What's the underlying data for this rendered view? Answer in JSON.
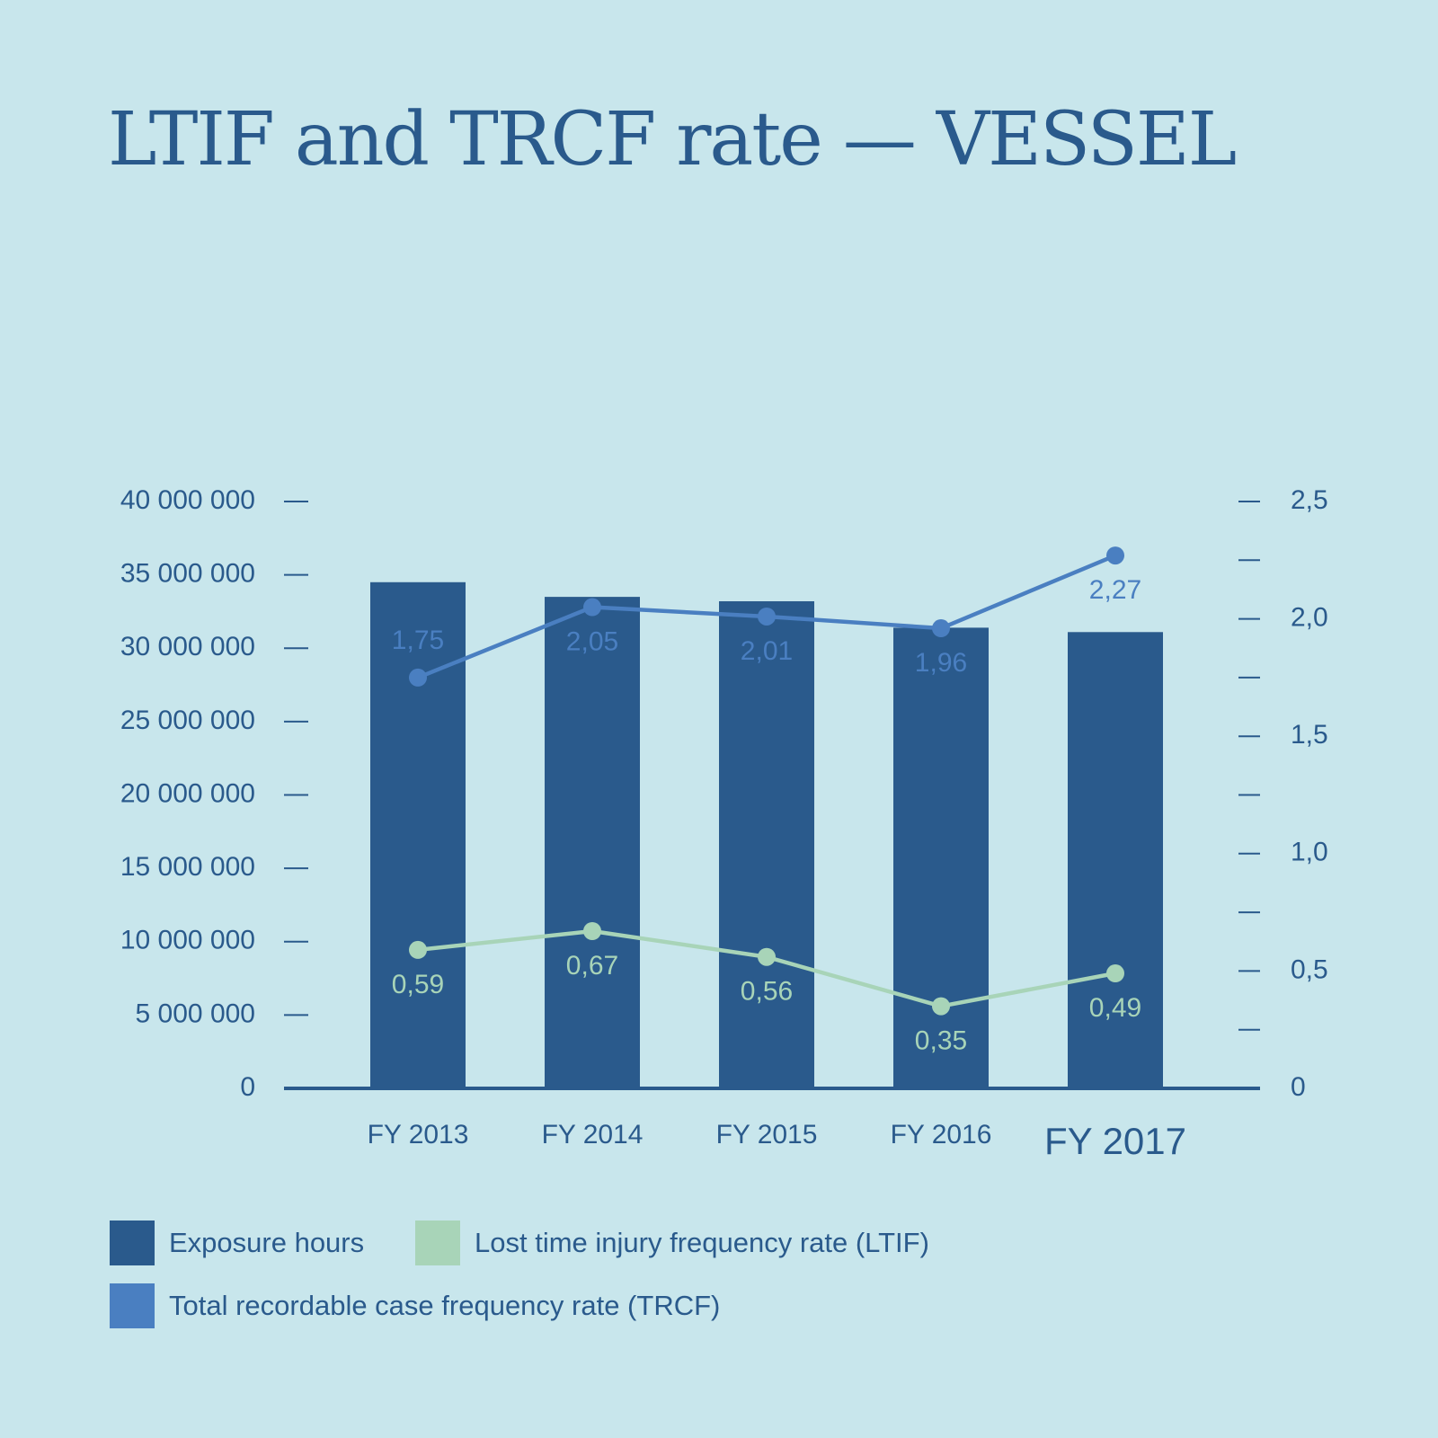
{
  "chart_data": {
    "type": "bar",
    "title": "LTIF and TRCF rate — VESSEL",
    "categories": [
      "FY 2013",
      "FY 2014",
      "FY 2015",
      "FY 2016",
      "FY 2017"
    ],
    "highlight_category": "FY 2017",
    "y_left": {
      "min": 0,
      "max": 40000000,
      "step": 5000000,
      "tick_labels": [
        "0",
        "5 000 000",
        "10 000 000",
        "15 000 000",
        "20 000 000",
        "25 000 000",
        "30 000 000",
        "35 000 000",
        "40 000 000"
      ]
    },
    "y_right": {
      "min": 0,
      "max": 2.5,
      "step": 0.25,
      "tick_labels": [
        "0",
        "0,5",
        "1,0",
        "1,5",
        "2,0",
        "2,5"
      ]
    },
    "series": [
      {
        "name": "Exposure hours",
        "type": "bar",
        "axis": "left",
        "color": "#2a5a8c",
        "values": [
          34500000,
          33500000,
          33200000,
          31400000,
          31100000
        ]
      },
      {
        "name": "Lost time injury frequency rate (LTIF)",
        "type": "line",
        "axis": "right",
        "color": "#a8d4b8",
        "values": [
          0.59,
          0.67,
          0.56,
          0.35,
          0.49
        ],
        "labels": [
          "0,59",
          "0,67",
          "0,56",
          "0,35",
          "0,49"
        ],
        "label_position": [
          "below",
          "below",
          "below",
          "below",
          "below"
        ]
      },
      {
        "name": "Total recordable case frequency rate (TRCF)",
        "type": "line",
        "axis": "right",
        "color": "#4a7fc1",
        "values": [
          1.75,
          2.05,
          2.01,
          1.96,
          2.27
        ],
        "labels": [
          "1,75",
          "2,05",
          "2,01",
          "1,96",
          "2,27"
        ],
        "label_position": [
          "above",
          "below",
          "below",
          "below",
          "below"
        ]
      }
    ],
    "legend": [
      "Exposure hours",
      "Lost time injury frequency rate (LTIF)",
      "Total recordable case frequency rate (TRCF)"
    ],
    "legend_position": "bottom-left"
  }
}
